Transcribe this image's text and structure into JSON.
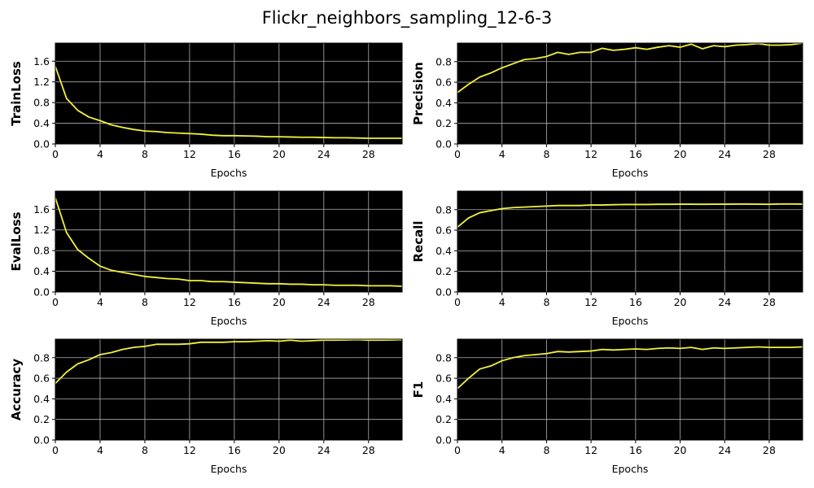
{
  "figure": {
    "title": "Flickr_neighbors_sampling_12-6-3"
  },
  "colors": {
    "background": "#000000",
    "line": "#f2f23c",
    "grid": "#b0b0b0"
  },
  "chart_data": [
    {
      "type": "line",
      "title": "",
      "xlabel": "Epochs",
      "ylabel": "TrainLoss",
      "xlim": [
        0,
        31
      ],
      "ylim": [
        0,
        1.95
      ],
      "xticks": [
        0,
        4,
        8,
        12,
        16,
        20,
        24,
        28
      ],
      "yticks": [
        0.0,
        0.4,
        0.8,
        1.2,
        1.6
      ],
      "grid": true,
      "series": [
        {
          "x": [
            0,
            1,
            2,
            3,
            4,
            5,
            6,
            7,
            8,
            9,
            10,
            11,
            12,
            13,
            14,
            15,
            16,
            17,
            18,
            19,
            20,
            21,
            22,
            23,
            24,
            25,
            26,
            27,
            28,
            29,
            30,
            31
          ],
          "y": [
            1.5,
            0.88,
            0.65,
            0.52,
            0.45,
            0.37,
            0.32,
            0.28,
            0.25,
            0.24,
            0.22,
            0.21,
            0.2,
            0.19,
            0.17,
            0.16,
            0.16,
            0.155,
            0.15,
            0.14,
            0.14,
            0.135,
            0.13,
            0.13,
            0.125,
            0.12,
            0.12,
            0.115,
            0.11,
            0.11,
            0.11,
            0.11
          ]
        }
      ]
    },
    {
      "type": "line",
      "title": "",
      "xlabel": "Epochs",
      "ylabel": "Precision",
      "xlim": [
        0,
        31
      ],
      "ylim": [
        0,
        0.98
      ],
      "xticks": [
        0,
        4,
        8,
        12,
        16,
        20,
        24,
        28
      ],
      "yticks": [
        0.0,
        0.2,
        0.4,
        0.6,
        0.8
      ],
      "grid": true,
      "series": [
        {
          "x": [
            0,
            1,
            2,
            3,
            4,
            5,
            6,
            7,
            8,
            9,
            10,
            11,
            12,
            13,
            14,
            15,
            16,
            17,
            18,
            19,
            20,
            21,
            22,
            23,
            24,
            25,
            26,
            27,
            28,
            29,
            30,
            31
          ],
          "y": [
            0.5,
            0.58,
            0.65,
            0.69,
            0.74,
            0.78,
            0.82,
            0.83,
            0.85,
            0.89,
            0.87,
            0.89,
            0.89,
            0.93,
            0.91,
            0.92,
            0.935,
            0.92,
            0.94,
            0.955,
            0.94,
            0.97,
            0.925,
            0.955,
            0.945,
            0.96,
            0.965,
            0.975,
            0.96,
            0.96,
            0.965,
            0.98
          ]
        }
      ]
    },
    {
      "type": "line",
      "title": "",
      "xlabel": "Epochs",
      "ylabel": "EvalLoss",
      "xlim": [
        0,
        31
      ],
      "ylim": [
        0,
        1.95
      ],
      "xticks": [
        0,
        4,
        8,
        12,
        16,
        20,
        24,
        28
      ],
      "yticks": [
        0.0,
        0.4,
        0.8,
        1.2,
        1.6
      ],
      "grid": true,
      "series": [
        {
          "x": [
            0,
            1,
            2,
            3,
            4,
            5,
            6,
            7,
            8,
            9,
            10,
            11,
            12,
            13,
            14,
            15,
            16,
            17,
            18,
            19,
            20,
            21,
            22,
            23,
            24,
            25,
            26,
            27,
            28,
            29,
            30,
            31
          ],
          "y": [
            1.82,
            1.15,
            0.82,
            0.65,
            0.5,
            0.42,
            0.38,
            0.34,
            0.3,
            0.28,
            0.26,
            0.25,
            0.22,
            0.22,
            0.2,
            0.2,
            0.19,
            0.18,
            0.17,
            0.16,
            0.16,
            0.15,
            0.15,
            0.14,
            0.14,
            0.13,
            0.13,
            0.13,
            0.12,
            0.12,
            0.12,
            0.11
          ]
        }
      ]
    },
    {
      "type": "line",
      "title": "",
      "xlabel": "Epochs",
      "ylabel": "Recall",
      "xlim": [
        0,
        31
      ],
      "ylim": [
        0,
        0.98
      ],
      "xticks": [
        0,
        4,
        8,
        12,
        16,
        20,
        24,
        28
      ],
      "yticks": [
        0.0,
        0.2,
        0.4,
        0.6,
        0.8
      ],
      "grid": true,
      "series": [
        {
          "x": [
            0,
            1,
            2,
            3,
            4,
            5,
            6,
            7,
            8,
            9,
            10,
            11,
            12,
            13,
            14,
            15,
            16,
            17,
            18,
            19,
            20,
            21,
            22,
            23,
            24,
            25,
            26,
            27,
            28,
            29,
            30,
            31
          ],
          "y": [
            0.63,
            0.72,
            0.77,
            0.79,
            0.81,
            0.82,
            0.825,
            0.83,
            0.835,
            0.84,
            0.84,
            0.84,
            0.845,
            0.845,
            0.848,
            0.85,
            0.85,
            0.85,
            0.852,
            0.852,
            0.853,
            0.853,
            0.852,
            0.853,
            0.853,
            0.854,
            0.854,
            0.853,
            0.852,
            0.855,
            0.855,
            0.854
          ]
        }
      ]
    },
    {
      "type": "line",
      "title": "",
      "xlabel": "Epochs",
      "ylabel": "Accuracy",
      "xlim": [
        0,
        31
      ],
      "ylim": [
        0,
        0.98
      ],
      "xticks": [
        0,
        4,
        8,
        12,
        16,
        20,
        24,
        28
      ],
      "yticks": [
        0.0,
        0.2,
        0.4,
        0.6,
        0.8
      ],
      "grid": true,
      "series": [
        {
          "x": [
            0,
            1,
            2,
            3,
            4,
            5,
            6,
            7,
            8,
            9,
            10,
            11,
            12,
            13,
            14,
            15,
            16,
            17,
            18,
            19,
            20,
            21,
            22,
            23,
            24,
            25,
            26,
            27,
            28,
            29,
            30,
            31
          ],
          "y": [
            0.55,
            0.66,
            0.74,
            0.78,
            0.83,
            0.85,
            0.88,
            0.9,
            0.91,
            0.93,
            0.93,
            0.93,
            0.935,
            0.95,
            0.95,
            0.95,
            0.955,
            0.955,
            0.96,
            0.965,
            0.96,
            0.97,
            0.96,
            0.965,
            0.97,
            0.97,
            0.972,
            0.975,
            0.97,
            0.97,
            0.972,
            0.975
          ]
        }
      ]
    },
    {
      "type": "line",
      "title": "",
      "xlabel": "Epochs",
      "ylabel": "F1",
      "xlim": [
        0,
        31
      ],
      "ylim": [
        0,
        0.98
      ],
      "xticks": [
        0,
        4,
        8,
        12,
        16,
        20,
        24,
        28
      ],
      "yticks": [
        0.0,
        0.2,
        0.4,
        0.6,
        0.8
      ],
      "grid": true,
      "series": [
        {
          "x": [
            0,
            1,
            2,
            3,
            4,
            5,
            6,
            7,
            8,
            9,
            10,
            11,
            12,
            13,
            14,
            15,
            16,
            17,
            18,
            19,
            20,
            21,
            22,
            23,
            24,
            25,
            26,
            27,
            28,
            29,
            30,
            31
          ],
          "y": [
            0.5,
            0.6,
            0.69,
            0.72,
            0.77,
            0.8,
            0.82,
            0.83,
            0.84,
            0.86,
            0.855,
            0.86,
            0.865,
            0.88,
            0.875,
            0.88,
            0.885,
            0.88,
            0.89,
            0.895,
            0.89,
            0.9,
            0.88,
            0.895,
            0.89,
            0.895,
            0.9,
            0.905,
            0.9,
            0.9,
            0.9,
            0.905
          ]
        }
      ]
    }
  ]
}
